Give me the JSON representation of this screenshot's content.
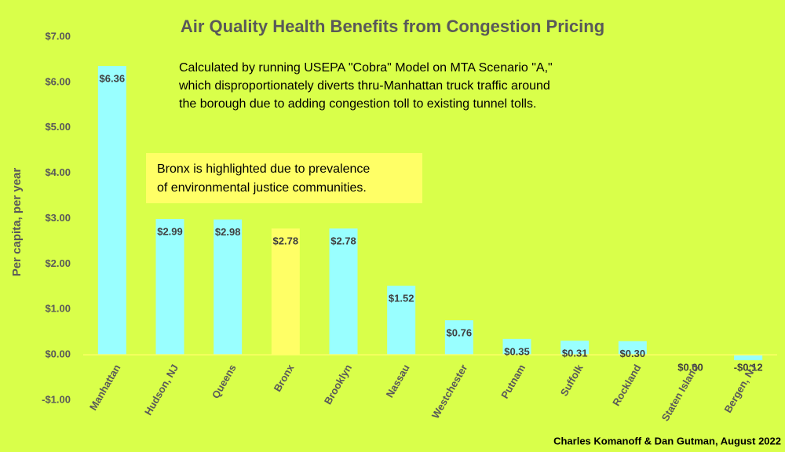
{
  "chart_data": {
    "type": "bar",
    "title": "Air Quality Health Benefits from Congestion Pricing",
    "subtitle": [
      "Calculated by running USEPA \"Cobra\" Model on MTA Scenario \"A,\"",
      "which disproportionately diverts thru-Manhattan truck traffic around",
      "the borough due to adding congestion toll to existing tunnel tolls."
    ],
    "note": [
      "Bronx is highlighted due to prevalence",
      "of environmental justice communities."
    ],
    "credit": "Charles Komanoff & Dan Gutman, August 2022",
    "ylabel": "Per capita, per year",
    "categories": [
      "Manhattan",
      "Hudson, NJ",
      "Queens",
      "Bronx",
      "Brooklyn",
      "Nassau",
      "Westchester",
      "Putnam",
      "Suffolk",
      "Rockland",
      "Staten Island",
      "Bergen, NJ"
    ],
    "values": [
      6.36,
      2.99,
      2.98,
      2.78,
      2.78,
      1.52,
      0.76,
      0.35,
      0.31,
      0.3,
      0.0,
      -0.12
    ],
    "value_labels": [
      "$6.36",
      "$2.99",
      "$2.98",
      "$2.78",
      "$2.78",
      "$1.52",
      "$0.76",
      "$0.35",
      "$0.31",
      "$0.30",
      "$0.00",
      "-$0.12"
    ],
    "colors": [
      "#99ffff",
      "#99ffff",
      "#99ffff",
      "#ffff66",
      "#99ffff",
      "#99ffff",
      "#99ffff",
      "#99ffff",
      "#99ffff",
      "#99ffff",
      "#99ffff",
      "#99ffff"
    ],
    "ylim": [
      -1,
      7
    ],
    "yticks": [
      {
        "value": -1,
        "label": "-$1.00"
      },
      {
        "value": 0,
        "label": "$0.00"
      },
      {
        "value": 1,
        "label": "$1.00"
      },
      {
        "value": 2,
        "label": "$2.00"
      },
      {
        "value": 3,
        "label": "$3.00"
      },
      {
        "value": 4,
        "label": "$4.00"
      },
      {
        "value": 5,
        "label": "$5.00"
      },
      {
        "value": 6,
        "label": "$6.00"
      },
      {
        "value": 7,
        "label": "$7.00"
      }
    ],
    "grid": false
  }
}
